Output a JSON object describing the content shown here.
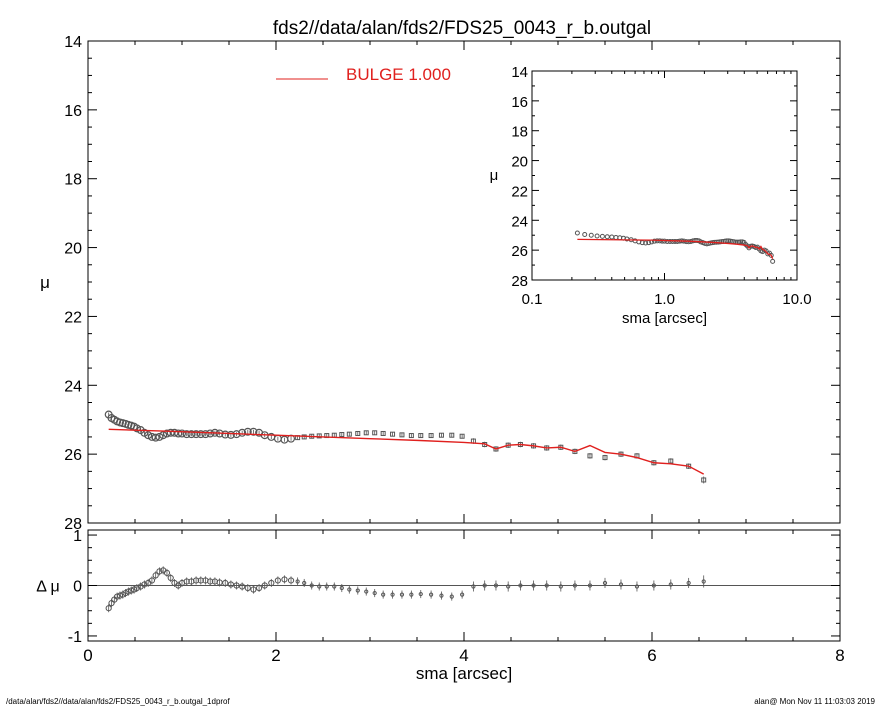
{
  "title": "fds2//data/alan/fds2/FDS25_0043_r_b.outgal",
  "footer": {
    "left": "/data/alan/fds2//data/alan/fds2/FDS25_0043_r_b.outgal_1dprof",
    "right": "alan@  Mon Nov 11 11:03:03 2019"
  },
  "colors": {
    "model": "#e0201e",
    "data": "#555555",
    "axis": "#000000"
  },
  "chart_data": [
    {
      "id": "main",
      "type": "scatter",
      "ylabel": "μ",
      "xlim": [
        0,
        8
      ],
      "ylim": [
        28,
        14
      ],
      "yticks": [
        "14",
        "16",
        "18",
        "20",
        "22",
        "24",
        "26",
        "28"
      ],
      "legend": {
        "label": "BULGE  1.000",
        "placement": "top-center"
      },
      "series": [
        {
          "role": "data",
          "x": [
            0.22,
            0.25,
            0.28,
            0.31,
            0.34,
            0.37,
            0.4,
            0.43,
            0.46,
            0.49,
            0.52,
            0.56,
            0.6,
            0.64,
            0.68,
            0.72,
            0.76,
            0.8,
            0.84,
            0.88,
            0.92,
            0.96,
            1.0,
            1.05,
            1.1,
            1.15,
            1.2,
            1.25,
            1.3,
            1.35,
            1.4,
            1.46,
            1.52,
            1.58,
            1.64,
            1.7,
            1.76,
            1.82,
            1.88,
            1.95,
            2.02,
            2.09,
            2.16,
            2.23,
            2.3,
            2.38,
            2.46,
            2.54,
            2.62,
            2.7,
            2.78,
            2.87,
            2.96,
            3.05,
            3.14,
            3.24,
            3.34,
            3.44,
            3.54,
            3.65,
            3.76,
            3.87,
            3.98,
            4.1,
            4.22,
            4.34,
            4.47,
            4.6,
            4.74,
            4.88,
            5.03,
            5.18,
            5.34,
            5.5,
            5.67,
            5.84,
            6.02,
            6.2,
            6.39,
            6.55
          ],
          "y": [
            24.85,
            24.95,
            25.0,
            25.05,
            25.08,
            25.1,
            25.12,
            25.15,
            25.17,
            25.2,
            25.25,
            25.3,
            25.38,
            25.45,
            25.5,
            25.52,
            25.5,
            25.45,
            25.4,
            25.38,
            25.38,
            25.4,
            25.4,
            25.42,
            25.42,
            25.42,
            25.42,
            25.42,
            25.4,
            25.38,
            25.4,
            25.43,
            25.44,
            25.42,
            25.38,
            25.35,
            25.35,
            25.38,
            25.45,
            25.5,
            25.55,
            25.58,
            25.55,
            25.52,
            25.5,
            25.48,
            25.47,
            25.46,
            25.45,
            25.43,
            25.42,
            25.4,
            25.38,
            25.38,
            25.4,
            25.42,
            25.44,
            25.46,
            25.46,
            25.46,
            25.45,
            25.45,
            25.48,
            25.62,
            25.72,
            25.85,
            25.74,
            25.72,
            25.76,
            25.82,
            25.8,
            25.92,
            26.05,
            26.1,
            26.0,
            26.05,
            26.25,
            26.2,
            26.35,
            26.75
          ],
          "yerr": [
            0.06,
            0.06,
            0.06,
            0.06,
            0.06,
            0.06,
            0.06,
            0.06,
            0.06,
            0.06,
            0.06,
            0.06,
            0.06,
            0.06,
            0.06,
            0.06,
            0.06,
            0.06,
            0.06,
            0.06,
            0.06,
            0.06,
            0.06,
            0.06,
            0.06,
            0.06,
            0.06,
            0.06,
            0.06,
            0.06,
            0.06,
            0.06,
            0.06,
            0.06,
            0.06,
            0.06,
            0.06,
            0.06,
            0.06,
            0.06,
            0.06,
            0.06,
            0.06,
            0.06,
            0.06,
            0.06,
            0.06,
            0.06,
            0.06,
            0.06,
            0.06,
            0.06,
            0.06,
            0.06,
            0.06,
            0.06,
            0.06,
            0.06,
            0.06,
            0.06,
            0.06,
            0.06,
            0.06,
            0.08,
            0.08,
            0.08,
            0.08,
            0.08,
            0.08,
            0.08,
            0.08,
            0.08,
            0.08,
            0.08,
            0.08,
            0.08,
            0.08,
            0.08,
            0.08,
            0.1
          ]
        },
        {
          "role": "model",
          "name": "BULGE  1.000",
          "x": [
            0.22,
            0.8,
            1.5,
            2.0,
            2.5,
            3.0,
            3.5,
            4.0,
            4.22,
            4.34,
            4.47,
            4.6,
            4.74,
            4.88,
            5.03,
            5.18,
            5.34,
            5.5,
            5.67,
            5.84,
            6.02,
            6.2,
            6.39,
            6.55
          ],
          "y": [
            25.28,
            25.33,
            25.4,
            25.45,
            25.5,
            25.55,
            25.6,
            25.66,
            25.7,
            25.85,
            25.74,
            25.72,
            25.76,
            25.82,
            25.8,
            25.92,
            25.75,
            25.95,
            26.0,
            26.1,
            26.25,
            26.28,
            26.35,
            26.58
          ]
        }
      ]
    },
    {
      "id": "inset",
      "type": "line",
      "xlabel": "sma [arcsec]",
      "ylabel": "μ",
      "xscale": "log",
      "xlim": [
        0.1,
        10.0
      ],
      "xticks": [
        "0.1",
        "1.0",
        "10.0"
      ],
      "ylim": [
        28,
        14
      ],
      "yticks": [
        "14",
        "16",
        "18",
        "20",
        "22",
        "24",
        "26",
        "28"
      ],
      "series": [
        {
          "role": "data",
          "x": [
            0.22,
            0.25,
            0.28,
            0.31,
            0.34,
            0.37,
            0.4,
            0.43,
            0.46,
            0.49,
            0.52,
            0.56,
            0.6,
            0.64,
            0.68,
            0.72,
            0.76,
            0.8,
            0.84,
            0.88,
            0.92,
            0.96,
            1.0,
            1.05,
            1.1,
            1.15,
            1.2,
            1.25,
            1.3,
            1.35,
            1.4,
            1.46,
            1.52,
            1.58,
            1.64,
            1.7,
            1.76,
            1.82,
            1.88,
            1.95,
            2.02,
            2.09,
            2.16,
            2.23,
            2.3,
            2.38,
            2.46,
            2.54,
            2.62,
            2.7,
            2.78,
            2.87,
            2.96,
            3.05,
            3.14,
            3.24,
            3.34,
            3.44,
            3.54,
            3.65,
            3.76,
            3.87,
            3.98,
            4.1,
            4.22,
            4.34,
            4.47,
            4.6,
            4.74,
            4.88,
            5.03,
            5.18,
            5.34,
            5.5,
            5.67,
            5.84,
            6.02,
            6.2,
            6.39,
            6.55
          ],
          "y": [
            24.85,
            24.95,
            25.0,
            25.05,
            25.08,
            25.1,
            25.12,
            25.15,
            25.17,
            25.2,
            25.25,
            25.3,
            25.38,
            25.45,
            25.5,
            25.52,
            25.5,
            25.45,
            25.4,
            25.38,
            25.38,
            25.4,
            25.4,
            25.42,
            25.42,
            25.42,
            25.42,
            25.42,
            25.4,
            25.38,
            25.4,
            25.43,
            25.44,
            25.42,
            25.38,
            25.35,
            25.35,
            25.38,
            25.45,
            25.5,
            25.55,
            25.58,
            25.55,
            25.52,
            25.5,
            25.48,
            25.47,
            25.46,
            25.45,
            25.43,
            25.42,
            25.4,
            25.38,
            25.38,
            25.4,
            25.42,
            25.44,
            25.46,
            25.46,
            25.46,
            25.45,
            25.45,
            25.48,
            25.62,
            25.72,
            25.85,
            25.74,
            25.72,
            25.76,
            25.82,
            25.8,
            25.92,
            26.05,
            26.1,
            26.0,
            26.05,
            26.25,
            26.2,
            26.35,
            26.75
          ]
        },
        {
          "role": "model",
          "x": [
            0.22,
            0.8,
            1.5,
            2.0,
            2.5,
            3.0,
            3.5,
            4.0,
            4.22,
            4.34,
            4.47,
            4.6,
            4.74,
            4.88,
            5.03,
            5.18,
            5.34,
            5.5,
            5.67,
            5.84,
            6.02,
            6.2,
            6.39,
            6.55
          ],
          "y": [
            25.28,
            25.33,
            25.4,
            25.45,
            25.5,
            25.55,
            25.6,
            25.66,
            25.7,
            25.85,
            25.74,
            25.72,
            25.76,
            25.82,
            25.8,
            25.92,
            25.75,
            25.95,
            26.0,
            26.1,
            26.25,
            26.28,
            26.35,
            26.58
          ]
        }
      ]
    },
    {
      "id": "residual",
      "type": "scatter",
      "xlabel": "sma [arcsec]",
      "ylabel": "Δ μ",
      "xlim": [
        0,
        8
      ],
      "xticks": [
        "0",
        "2",
        "4",
        "6",
        "8"
      ],
      "ylim": [
        -1.1,
        1.1
      ],
      "yticks": [
        "1",
        "0",
        "-1"
      ],
      "reference_line": 0,
      "series": [
        {
          "role": "residual",
          "x": [
            0.22,
            0.25,
            0.28,
            0.31,
            0.34,
            0.37,
            0.4,
            0.43,
            0.46,
            0.49,
            0.52,
            0.56,
            0.6,
            0.64,
            0.68,
            0.72,
            0.76,
            0.8,
            0.84,
            0.88,
            0.92,
            0.96,
            1.0,
            1.05,
            1.1,
            1.15,
            1.2,
            1.25,
            1.3,
            1.35,
            1.4,
            1.46,
            1.52,
            1.58,
            1.64,
            1.7,
            1.76,
            1.82,
            1.88,
            1.95,
            2.02,
            2.09,
            2.16,
            2.23,
            2.3,
            2.38,
            2.46,
            2.54,
            2.62,
            2.7,
            2.78,
            2.87,
            2.96,
            3.05,
            3.14,
            3.24,
            3.34,
            3.44,
            3.54,
            3.65,
            3.76,
            3.87,
            3.98,
            4.1,
            4.22,
            4.34,
            4.47,
            4.6,
            4.74,
            4.88,
            5.03,
            5.18,
            5.34,
            5.5,
            5.67,
            5.84,
            6.02,
            6.2,
            6.39,
            6.55
          ],
          "y": [
            -0.45,
            -0.35,
            -0.28,
            -0.22,
            -0.2,
            -0.18,
            -0.15,
            -0.12,
            -0.1,
            -0.08,
            -0.05,
            -0.02,
            0.02,
            0.05,
            0.1,
            0.2,
            0.28,
            0.3,
            0.25,
            0.15,
            0.05,
            0.0,
            0.05,
            0.08,
            0.08,
            0.1,
            0.1,
            0.1,
            0.08,
            0.08,
            0.06,
            0.05,
            0.02,
            0.0,
            -0.02,
            -0.05,
            -0.08,
            -0.05,
            0.0,
            0.05,
            0.1,
            0.12,
            0.1,
            0.08,
            0.05,
            0.0,
            -0.02,
            -0.02,
            -0.02,
            -0.05,
            -0.08,
            -0.1,
            -0.12,
            -0.15,
            -0.18,
            -0.18,
            -0.18,
            -0.18,
            -0.17,
            -0.18,
            -0.2,
            -0.22,
            -0.18,
            -0.02,
            0.0,
            0.0,
            -0.02,
            0.0,
            0.0,
            0.0,
            -0.02,
            0.0,
            0.0,
            0.05,
            0.02,
            -0.02,
            0.0,
            0.02,
            0.05,
            0.08
          ],
          "yerr": [
            0.08,
            0.08,
            0.08,
            0.08,
            0.08,
            0.08,
            0.08,
            0.08,
            0.08,
            0.08,
            0.08,
            0.08,
            0.08,
            0.08,
            0.08,
            0.08,
            0.08,
            0.08,
            0.08,
            0.08,
            0.08,
            0.08,
            0.08,
            0.08,
            0.08,
            0.08,
            0.08,
            0.08,
            0.08,
            0.08,
            0.08,
            0.08,
            0.08,
            0.08,
            0.08,
            0.08,
            0.08,
            0.08,
            0.08,
            0.08,
            0.08,
            0.08,
            0.08,
            0.08,
            0.08,
            0.08,
            0.08,
            0.08,
            0.08,
            0.08,
            0.08,
            0.08,
            0.08,
            0.08,
            0.08,
            0.08,
            0.08,
            0.08,
            0.08,
            0.08,
            0.08,
            0.08,
            0.08,
            0.1,
            0.1,
            0.1,
            0.1,
            0.1,
            0.1,
            0.1,
            0.1,
            0.1,
            0.1,
            0.1,
            0.1,
            0.1,
            0.1,
            0.1,
            0.1,
            0.12
          ]
        }
      ]
    }
  ]
}
